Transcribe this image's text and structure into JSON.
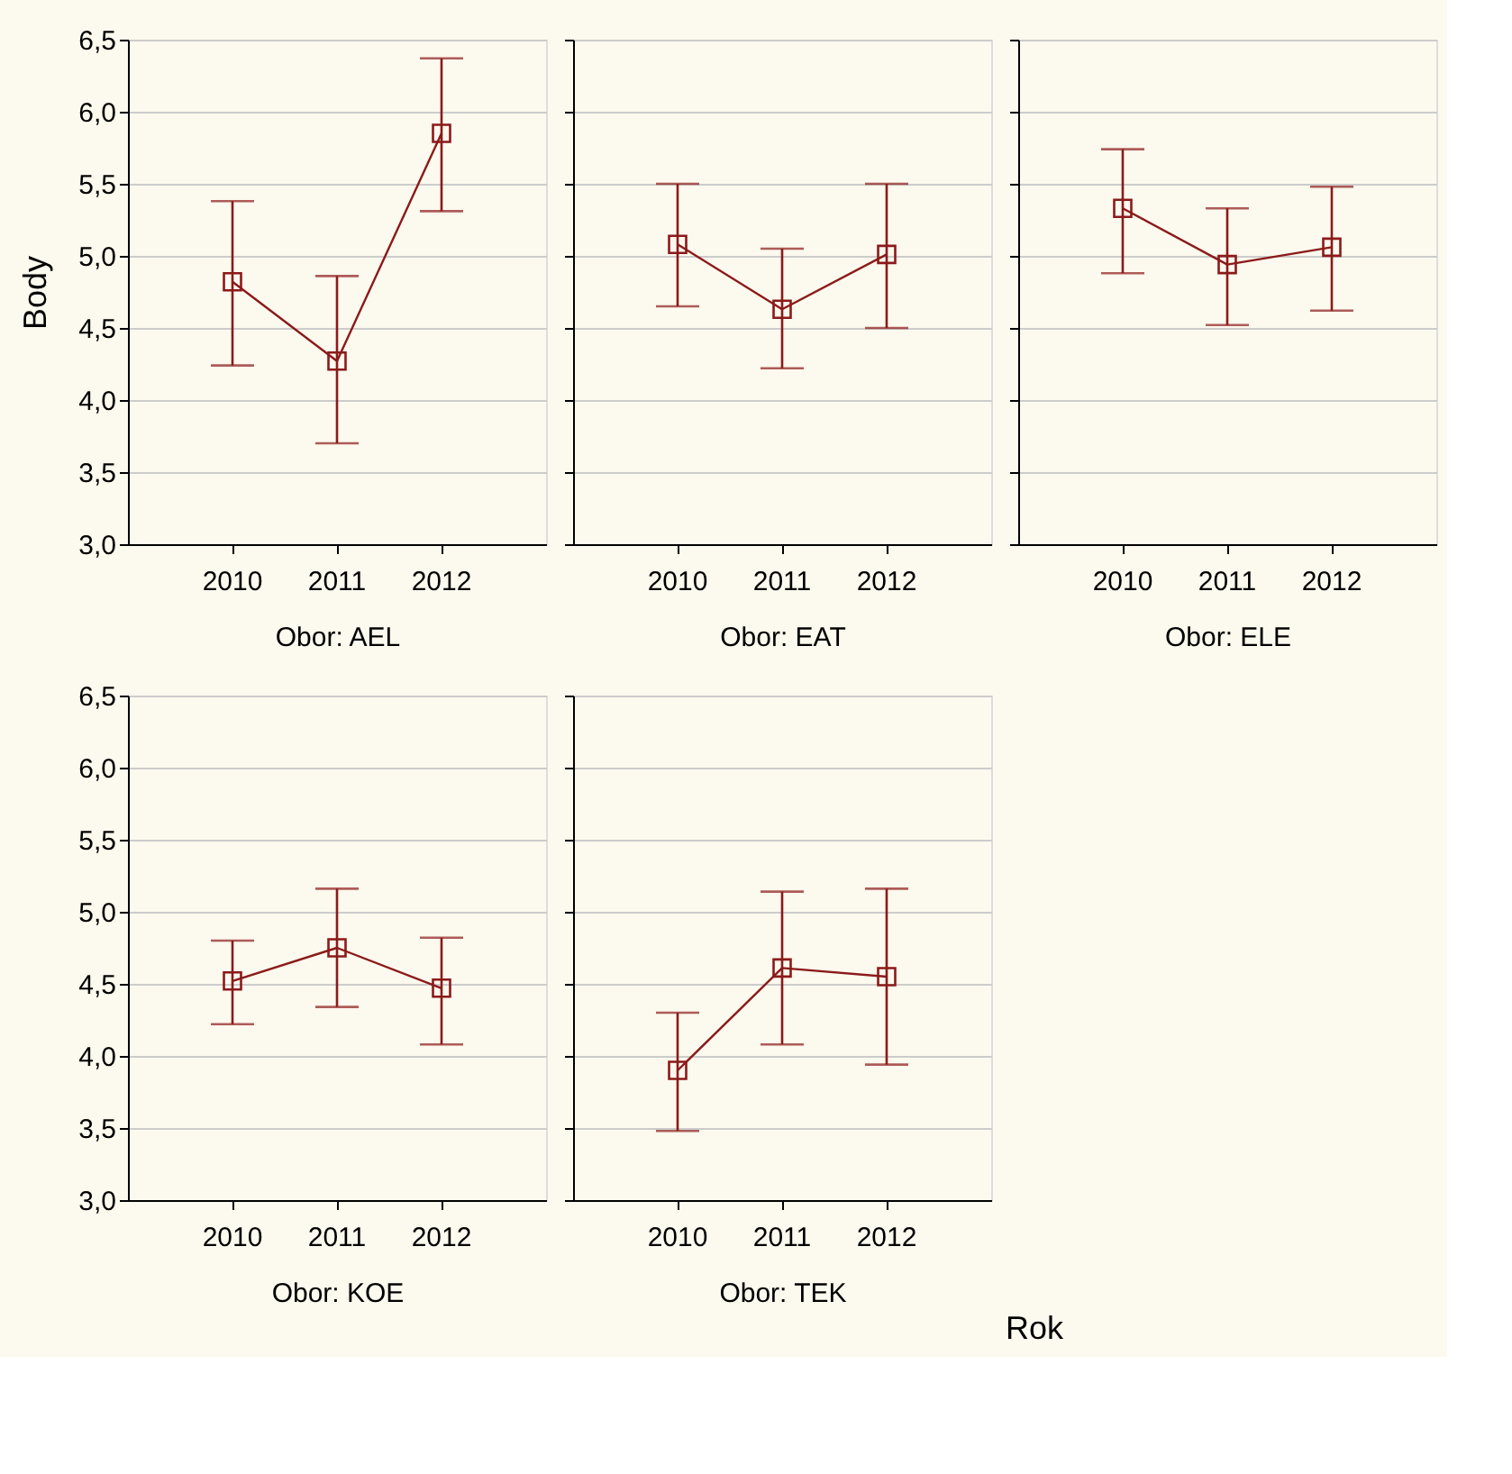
{
  "chart_data": [
    {
      "type": "line",
      "title": "Obor: AEL",
      "ylabel": "Body",
      "categories": [
        "2010",
        "2011",
        "2012"
      ],
      "series": [
        {
          "color": "#8b1a1a",
          "values": [
            4.82,
            4.27,
            5.85
          ],
          "errors": [
            [
              4.24,
              5.38
            ],
            [
              3.7,
              4.86
            ],
            [
              5.31,
              6.37
            ]
          ]
        }
      ],
      "ylim": [
        3.0,
        6.5
      ],
      "yticks": [
        {
          "value": 3.0,
          "label": "3,0"
        },
        {
          "value": 3.5,
          "label": "3,5"
        },
        {
          "value": 4.0,
          "label": "4,0"
        },
        {
          "value": 4.5,
          "label": "4,5"
        },
        {
          "value": 5.0,
          "label": "5,0"
        },
        {
          "value": 5.5,
          "label": "5,5"
        },
        {
          "value": 6.0,
          "label": "6,0"
        },
        {
          "value": 6.5,
          "label": "6,5"
        }
      ],
      "grid": "y",
      "marker": "square"
    },
    {
      "type": "line",
      "title": "Obor: EAT",
      "categories": [
        "2010",
        "2011",
        "2012"
      ],
      "series": [
        {
          "color": "#8b1a1a",
          "values": [
            5.08,
            4.63,
            5.01
          ],
          "errors": [
            [
              4.65,
              5.5
            ],
            [
              4.22,
              5.05
            ],
            [
              4.5,
              5.5
            ]
          ]
        }
      ],
      "ylim": [
        3.0,
        6.5
      ],
      "yticks": [
        3.0,
        3.5,
        4.0,
        4.5,
        5.0,
        5.5,
        6.0,
        6.5
      ],
      "grid": "y",
      "marker": "square",
      "tick_labels": "x"
    },
    {
      "type": "line",
      "title": "Obor: ELE",
      "categories": [
        "2010",
        "2011",
        "2012"
      ],
      "series": [
        {
          "color": "#8b1a1a",
          "values": [
            5.33,
            4.94,
            5.06
          ],
          "errors": [
            [
              4.88,
              5.74
            ],
            [
              4.52,
              5.33
            ],
            [
              4.62,
              5.48
            ]
          ]
        }
      ],
      "ylim": [
        3.0,
        6.5
      ],
      "yticks": [
        3.0,
        3.5,
        4.0,
        4.5,
        5.0,
        5.5,
        6.0,
        6.5
      ],
      "grid": "y",
      "marker": "square",
      "tick_labels": "x"
    },
    {
      "type": "line",
      "title": "Obor: KOE",
      "categories": [
        "2010",
        "2011",
        "2012"
      ],
      "series": [
        {
          "color": "#8b1a1a",
          "values": [
            4.52,
            4.75,
            4.47
          ],
          "errors": [
            [
              4.22,
              4.8
            ],
            [
              4.34,
              5.16
            ],
            [
              4.08,
              4.82
            ]
          ]
        }
      ],
      "ylim": [
        3.0,
        6.5
      ],
      "yticks": [
        {
          "value": 3.0,
          "label": "3,0"
        },
        {
          "value": 3.5,
          "label": "3,5"
        },
        {
          "value": 4.0,
          "label": "4,0"
        },
        {
          "value": 4.5,
          "label": "4,5"
        },
        {
          "value": 5.0,
          "label": "5,0"
        },
        {
          "value": 5.5,
          "label": "5,5"
        },
        {
          "value": 6.0,
          "label": "6,0"
        },
        {
          "value": 6.5,
          "label": "6,5"
        }
      ],
      "grid": "y",
      "marker": "square"
    },
    {
      "type": "line",
      "title": "Obor: TEK",
      "xlabel": "Rok",
      "categories": [
        "2010",
        "2011",
        "2012"
      ],
      "series": [
        {
          "color": "#8b1a1a",
          "values": [
            3.9,
            4.61,
            4.55
          ],
          "errors": [
            [
              3.48,
              4.3
            ],
            [
              4.08,
              5.14
            ],
            [
              3.94,
              5.16
            ]
          ]
        }
      ],
      "ylim": [
        3.0,
        6.5
      ],
      "yticks": [
        3.0,
        3.5,
        4.0,
        4.5,
        5.0,
        5.5,
        6.0,
        6.5
      ],
      "grid": "y",
      "marker": "square",
      "tick_labels": "x"
    }
  ]
}
